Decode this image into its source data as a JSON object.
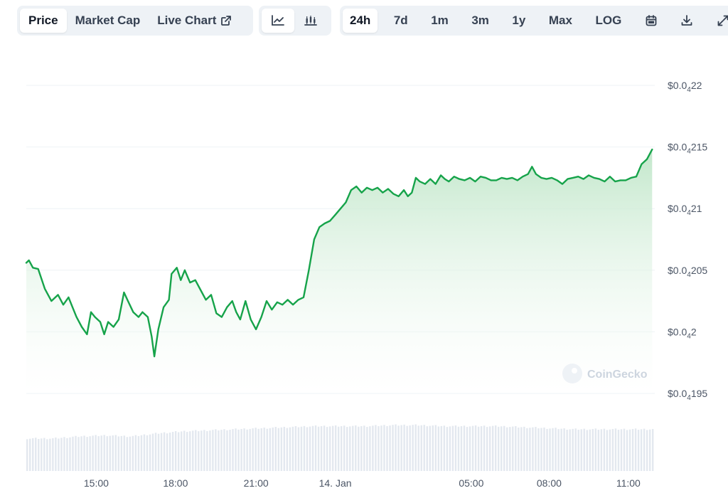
{
  "toolbar": {
    "view_tabs": [
      "Price",
      "Market Cap",
      "Live Chart"
    ],
    "active_view": "Price",
    "chart_types": [
      "line-chart-icon",
      "candlestick-chart-icon"
    ],
    "active_chart_type": "line-chart-icon",
    "ranges": [
      "24h",
      "7d",
      "1m",
      "3m",
      "1y",
      "Max",
      "LOG"
    ],
    "active_range": "24h",
    "tool_icons": [
      "calendar-icon",
      "download-icon",
      "expand-icon"
    ]
  },
  "watermark": "CoinGecko",
  "colors": {
    "line": "#16a34a",
    "fill_top": "#bfe6c8",
    "volume": "#e3e8ef",
    "grid": "#eef2f6"
  },
  "chart_data": {
    "type": "area",
    "title": "",
    "xlabel": "",
    "ylabel": "",
    "y_axis_side": "right",
    "y_ticks": [
      {
        "value": 0.0422,
        "prefix": "$0.0",
        "sub": "4",
        "digits": "22"
      },
      {
        "value": 0.04215,
        "prefix": "$0.0",
        "sub": "4",
        "digits": "215"
      },
      {
        "value": 0.0421,
        "prefix": "$0.0",
        "sub": "4",
        "digits": "21"
      },
      {
        "value": 0.04205,
        "prefix": "$0.0",
        "sub": "4",
        "digits": "205"
      },
      {
        "value": 0.042,
        "prefix": "$0.0",
        "sub": "4",
        "digits": "2"
      },
      {
        "value": 0.04195,
        "prefix": "$0.0",
        "sub": "4",
        "digits": "195"
      }
    ],
    "x_ticks": [
      {
        "label": "15:00",
        "hour": 2.65
      },
      {
        "label": "18:00",
        "hour": 5.65
      },
      {
        "label": "21:00",
        "hour": 8.7
      },
      {
        "label": "14. Jan",
        "hour": 11.7
      },
      {
        "label": "05:00",
        "hour": 16.85
      },
      {
        "label": "08:00",
        "hour": 19.8
      },
      {
        "label": "11:00",
        "hour": 22.8
      }
    ],
    "ylim": [
      0.04195,
      0.0422
    ],
    "xlim": [
      0,
      23.8
    ],
    "series": [
      {
        "points": [
          [
            0.0,
            0.042056
          ],
          [
            0.1,
            0.042058
          ],
          [
            0.25,
            0.042052
          ],
          [
            0.45,
            0.042051
          ],
          [
            0.7,
            0.042035
          ],
          [
            0.95,
            0.042025
          ],
          [
            1.2,
            0.04203
          ],
          [
            1.4,
            0.042022
          ],
          [
            1.6,
            0.042028
          ],
          [
            1.75,
            0.04202
          ],
          [
            1.9,
            0.042012
          ],
          [
            2.1,
            0.042004
          ],
          [
            2.3,
            0.041998
          ],
          [
            2.45,
            0.042016
          ],
          [
            2.6,
            0.042012
          ],
          [
            2.8,
            0.042008
          ],
          [
            2.95,
            0.041998
          ],
          [
            3.1,
            0.042008
          ],
          [
            3.3,
            0.042004
          ],
          [
            3.5,
            0.04201
          ],
          [
            3.7,
            0.042032
          ],
          [
            3.85,
            0.042025
          ],
          [
            4.05,
            0.042016
          ],
          [
            4.25,
            0.042012
          ],
          [
            4.4,
            0.042016
          ],
          [
            4.6,
            0.042012
          ],
          [
            4.75,
            0.041996
          ],
          [
            4.85,
            0.04198
          ],
          [
            5.0,
            0.042002
          ],
          [
            5.2,
            0.04202
          ],
          [
            5.4,
            0.042026
          ],
          [
            5.5,
            0.042047
          ],
          [
            5.7,
            0.042052
          ],
          [
            5.85,
            0.042042
          ],
          [
            6.0,
            0.04205
          ],
          [
            6.2,
            0.04204
          ],
          [
            6.4,
            0.042042
          ],
          [
            6.6,
            0.042034
          ],
          [
            6.8,
            0.042026
          ],
          [
            7.0,
            0.04203
          ],
          [
            7.2,
            0.042015
          ],
          [
            7.4,
            0.042012
          ],
          [
            7.6,
            0.04202
          ],
          [
            7.8,
            0.042025
          ],
          [
            7.95,
            0.042016
          ],
          [
            8.1,
            0.04201
          ],
          [
            8.3,
            0.042025
          ],
          [
            8.5,
            0.04201
          ],
          [
            8.7,
            0.042002
          ],
          [
            8.9,
            0.042012
          ],
          [
            9.1,
            0.042025
          ],
          [
            9.3,
            0.042018
          ],
          [
            9.5,
            0.042024
          ],
          [
            9.7,
            0.042022
          ],
          [
            9.9,
            0.042026
          ],
          [
            10.1,
            0.042022
          ],
          [
            10.3,
            0.042026
          ],
          [
            10.5,
            0.042028
          ],
          [
            10.7,
            0.04205
          ],
          [
            10.9,
            0.042075
          ],
          [
            11.1,
            0.042085
          ],
          [
            11.3,
            0.042088
          ],
          [
            11.5,
            0.04209
          ],
          [
            11.7,
            0.042095
          ],
          [
            11.9,
            0.0421
          ],
          [
            12.1,
            0.042105
          ],
          [
            12.3,
            0.042115
          ],
          [
            12.5,
            0.042118
          ],
          [
            12.7,
            0.042113
          ],
          [
            12.9,
            0.042117
          ],
          [
            13.1,
            0.042115
          ],
          [
            13.3,
            0.042117
          ],
          [
            13.5,
            0.042113
          ],
          [
            13.7,
            0.042116
          ],
          [
            13.9,
            0.042112
          ],
          [
            14.1,
            0.04211
          ],
          [
            14.3,
            0.042115
          ],
          [
            14.45,
            0.04211
          ],
          [
            14.6,
            0.042113
          ],
          [
            14.75,
            0.042125
          ],
          [
            14.9,
            0.042122
          ],
          [
            15.1,
            0.04212
          ],
          [
            15.3,
            0.042124
          ],
          [
            15.5,
            0.04212
          ],
          [
            15.7,
            0.042127
          ],
          [
            15.85,
            0.042124
          ],
          [
            16.0,
            0.042122
          ],
          [
            16.2,
            0.042126
          ],
          [
            16.4,
            0.042124
          ],
          [
            16.6,
            0.042123
          ],
          [
            16.8,
            0.042125
          ],
          [
            17.0,
            0.042122
          ],
          [
            17.2,
            0.042126
          ],
          [
            17.4,
            0.042125
          ],
          [
            17.6,
            0.042123
          ],
          [
            17.8,
            0.042123
          ],
          [
            18.0,
            0.042125
          ],
          [
            18.2,
            0.042124
          ],
          [
            18.4,
            0.042125
          ],
          [
            18.6,
            0.042123
          ],
          [
            18.8,
            0.042126
          ],
          [
            19.0,
            0.042128
          ],
          [
            19.15,
            0.042134
          ],
          [
            19.3,
            0.042128
          ],
          [
            19.5,
            0.042125
          ],
          [
            19.7,
            0.042124
          ],
          [
            19.9,
            0.042125
          ],
          [
            20.1,
            0.042123
          ],
          [
            20.3,
            0.04212
          ],
          [
            20.5,
            0.042124
          ],
          [
            20.7,
            0.042125
          ],
          [
            20.9,
            0.042126
          ],
          [
            21.1,
            0.042124
          ],
          [
            21.3,
            0.042127
          ],
          [
            21.5,
            0.042125
          ],
          [
            21.7,
            0.042124
          ],
          [
            21.9,
            0.042122
          ],
          [
            22.1,
            0.042126
          ],
          [
            22.3,
            0.042122
          ],
          [
            22.5,
            0.042123
          ],
          [
            22.7,
            0.042123
          ],
          [
            22.9,
            0.042125
          ],
          [
            23.1,
            0.042126
          ],
          [
            23.3,
            0.042136
          ],
          [
            23.5,
            0.04214
          ],
          [
            23.7,
            0.042148
          ]
        ]
      }
    ],
    "volume_level": [
      0.62,
      0.62,
      0.66,
      0.68,
      0.66,
      0.72,
      0.76,
      0.78,
      0.8,
      0.82,
      0.84,
      0.86,
      0.86,
      0.86,
      0.88,
      0.88,
      0.86,
      0.86,
      0.86,
      0.84,
      0.82,
      0.8,
      0.8,
      0.8,
      0.8
    ]
  }
}
